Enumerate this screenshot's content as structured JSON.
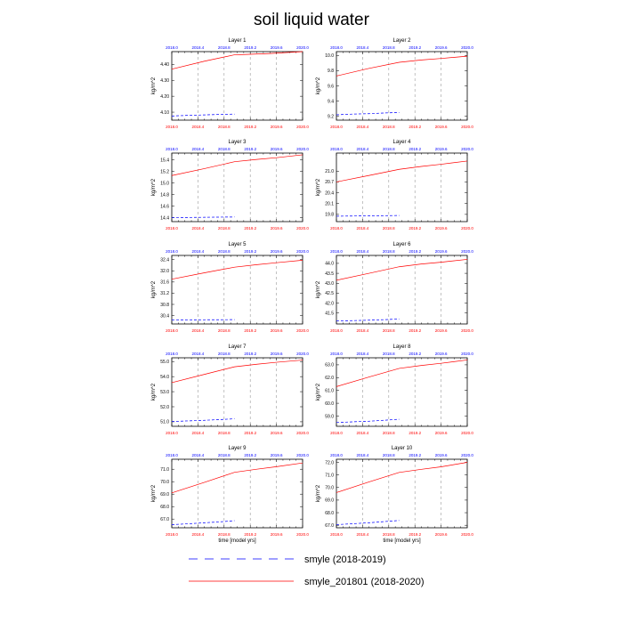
{
  "figure": {
    "title": "soil liquid water",
    "x_axis_label": "time [model yrs]",
    "colors": {
      "top_axis": "#0000ff",
      "bottom_axis": "#ff0000",
      "series1": "#0000ff",
      "series2": "#ff0000",
      "marker_lines": "#999999"
    }
  },
  "legend": {
    "items": [
      {
        "label": "smyle (2018-2019)",
        "style": "dashed",
        "color": "#0000ff"
      },
      {
        "label": "smyle_201801 (2018-2020)",
        "style": "solid",
        "color": "#ff0000"
      }
    ]
  },
  "chart_data": [
    {
      "type": "line",
      "title": "Layer 1",
      "ylabel": "kg/m^2",
      "xlim": [
        2018.0,
        2020.0
      ],
      "ylim": [
        4.05,
        4.48
      ],
      "x_ticks": [
        "2018.0",
        "2018.4",
        "2018.8",
        "2019.2",
        "2019.6",
        "2020.0"
      ],
      "y_ticks": [
        4.1,
        4.2,
        4.3,
        4.4
      ],
      "y_tick_labels": [
        "4.10",
        "4.20",
        "4.30",
        "4.40"
      ],
      "series": [
        {
          "name": "smyle (2018-2019)",
          "x": [
            2018.0,
            2018.25,
            2018.5,
            2018.75,
            2018.96
          ],
          "y": [
            4.076,
            4.08,
            4.083,
            4.086,
            4.088
          ]
        },
        {
          "name": "smyle_201801 (2018-2020)",
          "x": [
            2018.0,
            2018.5,
            2018.96,
            2019.1,
            2019.5,
            2020.0
          ],
          "y": [
            4.37,
            4.42,
            4.46,
            4.462,
            4.468,
            4.48
          ]
        }
      ]
    },
    {
      "type": "line",
      "title": "Layer 2",
      "ylabel": "kg/m^2",
      "xlim": [
        2018.0,
        2020.0
      ],
      "ylim": [
        9.15,
        10.05
      ],
      "x_ticks": [
        "2018.0",
        "2018.4",
        "2018.8",
        "2019.2",
        "2019.6",
        "2020.0"
      ],
      "y_ticks": [
        9.2,
        9.4,
        9.6,
        9.8,
        10.0
      ],
      "y_tick_labels": [
        "9.2",
        "9.4",
        "9.6",
        "9.8",
        "10.0"
      ],
      "series": [
        {
          "name": "smyle (2018-2019)",
          "x": [
            2018.0,
            2018.25,
            2018.5,
            2018.75,
            2018.96
          ],
          "y": [
            9.22,
            9.23,
            9.235,
            9.245,
            9.25
          ]
        },
        {
          "name": "smyle_201801 (2018-2020)",
          "x": [
            2018.0,
            2018.5,
            2018.96,
            2019.3,
            2019.6,
            2020.0
          ],
          "y": [
            9.73,
            9.83,
            9.91,
            9.94,
            9.96,
            9.99
          ]
        }
      ]
    },
    {
      "type": "line",
      "title": "Layer 3",
      "ylabel": "kg/m^2",
      "xlim": [
        2018.0,
        2020.0
      ],
      "ylim": [
        14.33,
        15.52
      ],
      "x_ticks": [
        "2018.0",
        "2018.4",
        "2018.8",
        "2019.2",
        "2019.6",
        "2020.0"
      ],
      "y_ticks": [
        14.4,
        14.6,
        14.8,
        15.0,
        15.2,
        15.4
      ],
      "y_tick_labels": [
        "14.4",
        "14.6",
        "14.8",
        "15.0",
        "15.2",
        "15.4"
      ],
      "series": [
        {
          "name": "smyle (2018-2019)",
          "x": [
            2018.0,
            2018.25,
            2018.5,
            2018.75,
            2018.96
          ],
          "y": [
            14.4,
            14.402,
            14.405,
            14.408,
            14.41
          ]
        },
        {
          "name": "smyle_201801 (2018-2020)",
          "x": [
            2018.0,
            2018.5,
            2018.96,
            2019.3,
            2019.6,
            2020.0
          ],
          "y": [
            15.13,
            15.25,
            15.37,
            15.41,
            15.44,
            15.49
          ]
        }
      ]
    },
    {
      "type": "line",
      "title": "Layer 4",
      "ylabel": "kg/m^2",
      "xlim": [
        2018.0,
        2020.0
      ],
      "ylim": [
        19.6,
        21.5
      ],
      "x_ticks": [
        "2018.0",
        "2018.4",
        "2018.8",
        "2019.2",
        "2019.6",
        "2020.0"
      ],
      "y_ticks": [
        19.8,
        20.1,
        20.4,
        20.7,
        21.0
      ],
      "y_tick_labels": [
        "19.8",
        "20.1",
        "20.4",
        "20.7",
        "21.0"
      ],
      "series": [
        {
          "name": "smyle (2018-2019)",
          "x": [
            2018.0,
            2018.25,
            2018.5,
            2018.75,
            2018.96
          ],
          "y": [
            19.75,
            19.755,
            19.76,
            19.765,
            19.77
          ]
        },
        {
          "name": "smyle_201801 (2018-2020)",
          "x": [
            2018.0,
            2018.5,
            2018.96,
            2019.3,
            2019.6,
            2020.0
          ],
          "y": [
            20.7,
            20.88,
            21.05,
            21.13,
            21.19,
            21.28
          ]
        }
      ]
    },
    {
      "type": "line",
      "title": "Layer 5",
      "ylabel": "kg/m^2",
      "xlim": [
        2018.0,
        2020.0
      ],
      "ylim": [
        30.1,
        32.55
      ],
      "x_ticks": [
        "2018.0",
        "2018.4",
        "2018.8",
        "2019.2",
        "2019.6",
        "2020.0"
      ],
      "y_ticks": [
        30.4,
        30.8,
        31.2,
        31.6,
        32.0,
        32.4
      ],
      "y_tick_labels": [
        "30.4",
        "30.8",
        "31.2",
        "31.6",
        "32.0",
        "32.4"
      ],
      "series": [
        {
          "name": "smyle (2018-2019)",
          "x": [
            2018.0,
            2018.25,
            2018.5,
            2018.75,
            2018.96
          ],
          "y": [
            30.24,
            30.245,
            30.25,
            30.252,
            30.255
          ]
        },
        {
          "name": "smyle_201801 (2018-2020)",
          "x": [
            2018.0,
            2018.5,
            2018.96,
            2019.3,
            2019.6,
            2020.0
          ],
          "y": [
            31.7,
            31.93,
            32.13,
            32.22,
            32.29,
            32.38
          ]
        }
      ]
    },
    {
      "type": "line",
      "title": "Layer 6",
      "ylabel": "kg/m^2",
      "xlim": [
        2018.0,
        2020.0
      ],
      "ylim": [
        40.95,
        44.4
      ],
      "x_ticks": [
        "2018.0",
        "2018.4",
        "2018.8",
        "2019.2",
        "2019.6",
        "2020.0"
      ],
      "y_ticks": [
        41.5,
        42.0,
        42.5,
        43.0,
        43.5,
        44.0
      ],
      "y_tick_labels": [
        "41.5",
        "42.0",
        "42.5",
        "43.0",
        "43.5",
        "44.0"
      ],
      "series": [
        {
          "name": "smyle (2018-2019)",
          "x": [
            2018.0,
            2018.25,
            2018.5,
            2018.75,
            2018.96
          ],
          "y": [
            41.1,
            41.12,
            41.14,
            41.17,
            41.2
          ]
        },
        {
          "name": "smyle_201801 (2018-2020)",
          "x": [
            2018.0,
            2018.5,
            2018.96,
            2019.3,
            2019.6,
            2020.0
          ],
          "y": [
            43.15,
            43.5,
            43.83,
            43.97,
            44.06,
            44.2
          ]
        }
      ]
    },
    {
      "type": "line",
      "title": "Layer 7",
      "ylabel": "kg/m^2",
      "xlim": [
        2018.0,
        2020.0
      ],
      "ylim": [
        50.7,
        55.25
      ],
      "x_ticks": [
        "2018.0",
        "2018.4",
        "2018.8",
        "2019.2",
        "2019.6",
        "2020.0"
      ],
      "y_ticks": [
        51.0,
        52.0,
        53.0,
        54.0,
        55.0
      ],
      "y_tick_labels": [
        "51.0",
        "52.0",
        "53.0",
        "54.0",
        "55.0"
      ],
      "series": [
        {
          "name": "smyle (2018-2019)",
          "x": [
            2018.0,
            2018.25,
            2018.5,
            2018.75,
            2018.96
          ],
          "y": [
            51.02,
            51.06,
            51.1,
            51.15,
            51.2
          ]
        },
        {
          "name": "smyle_201801 (2018-2020)",
          "x": [
            2018.0,
            2018.5,
            2018.96,
            2019.3,
            2019.6,
            2020.0
          ],
          "y": [
            53.6,
            54.15,
            54.65,
            54.82,
            54.95,
            55.1
          ]
        }
      ]
    },
    {
      "type": "line",
      "title": "Layer 8",
      "ylabel": "kg/m^2",
      "xlim": [
        2018.0,
        2020.0
      ],
      "ylim": [
        58.2,
        63.55
      ],
      "x_ticks": [
        "2018.0",
        "2018.4",
        "2018.8",
        "2019.2",
        "2019.6",
        "2020.0"
      ],
      "y_ticks": [
        59.0,
        60.0,
        61.0,
        62.0,
        63.0
      ],
      "y_tick_labels": [
        "59.0",
        "60.0",
        "61.0",
        "62.0",
        "63.0"
      ],
      "series": [
        {
          "name": "smyle (2018-2019)",
          "x": [
            2018.0,
            2018.25,
            2018.5,
            2018.75,
            2018.96
          ],
          "y": [
            58.5,
            58.55,
            58.6,
            58.68,
            58.75
          ]
        },
        {
          "name": "smyle_201801 (2018-2020)",
          "x": [
            2018.0,
            2018.5,
            2018.96,
            2019.3,
            2019.6,
            2020.0
          ],
          "y": [
            61.3,
            62.05,
            62.72,
            62.95,
            63.12,
            63.38
          ]
        }
      ]
    },
    {
      "type": "line",
      "title": "Layer 9",
      "ylabel": "kg/m^2",
      "xlim": [
        2018.0,
        2020.0
      ],
      "ylim": [
        66.3,
        71.8
      ],
      "x_ticks": [
        "2018.0",
        "2018.4",
        "2018.8",
        "2019.2",
        "2019.6",
        "2020.0"
      ],
      "y_ticks": [
        67.0,
        68.0,
        69.0,
        70.0,
        71.0
      ],
      "y_tick_labels": [
        "67.0",
        "68.0",
        "69.0",
        "70.0",
        "71.0"
      ],
      "series": [
        {
          "name": "smyle (2018-2019)",
          "x": [
            2018.0,
            2018.25,
            2018.5,
            2018.75,
            2018.96
          ],
          "y": [
            66.55,
            66.62,
            66.7,
            66.78,
            66.87
          ]
        },
        {
          "name": "smyle_201801 (2018-2020)",
          "x": [
            2018.0,
            2018.5,
            2018.96,
            2019.3,
            2019.6,
            2020.0
          ],
          "y": [
            69.1,
            69.95,
            70.75,
            71.0,
            71.2,
            71.5
          ]
        }
      ]
    },
    {
      "type": "line",
      "title": "Layer 10",
      "ylabel": "kg/m^2",
      "xlim": [
        2018.0,
        2020.0
      ],
      "ylim": [
        66.8,
        72.25
      ],
      "x_ticks": [
        "2018.0",
        "2018.4",
        "2018.8",
        "2019.2",
        "2019.6",
        "2020.0"
      ],
      "y_ticks": [
        67.0,
        68.0,
        69.0,
        70.0,
        71.0,
        72.0
      ],
      "y_tick_labels": [
        "67.0",
        "68.0",
        "69.0",
        "70.0",
        "71.0",
        "72.0"
      ],
      "series": [
        {
          "name": "smyle (2018-2019)",
          "x": [
            2018.0,
            2018.25,
            2018.5,
            2018.75,
            2018.96
          ],
          "y": [
            67.05,
            67.12,
            67.2,
            67.3,
            67.38
          ]
        },
        {
          "name": "smyle_201801 (2018-2020)",
          "x": [
            2018.0,
            2018.5,
            2018.96,
            2019.3,
            2019.6,
            2020.0
          ],
          "y": [
            69.6,
            70.45,
            71.2,
            71.45,
            71.65,
            72.0
          ]
        }
      ]
    }
  ]
}
